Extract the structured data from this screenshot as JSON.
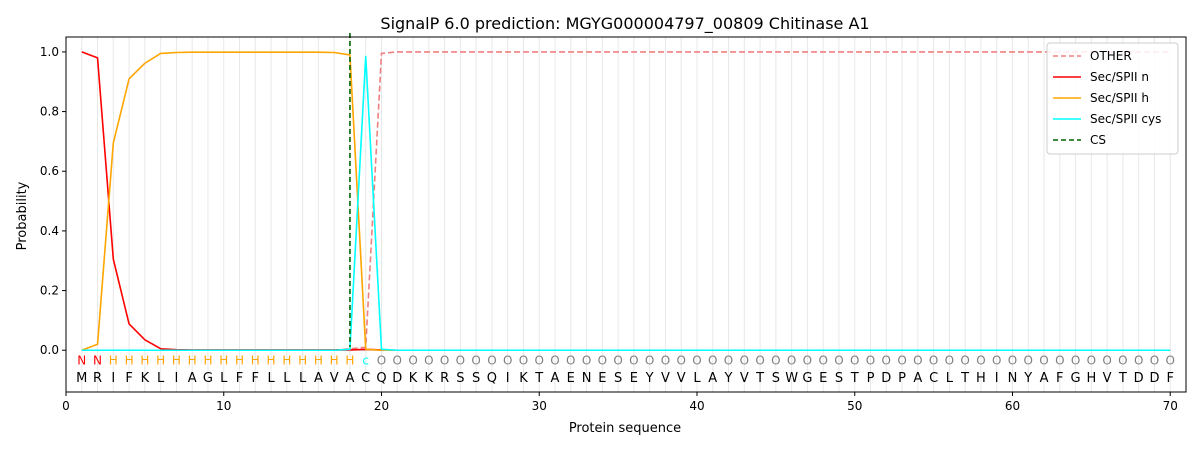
{
  "chart_data": {
    "type": "line",
    "title": "SignalP 6.0 prediction: MGYG000004797_00809 Chitinase A1",
    "xlabel": "Protein sequence",
    "ylabel": "Probability",
    "xlim": [
      0,
      71
    ],
    "ylim": [
      -0.14,
      1.05
    ],
    "xticks": [
      0,
      10,
      20,
      30,
      40,
      50,
      60,
      70
    ],
    "yticks": [
      0.0,
      0.2,
      0.4,
      0.6,
      0.8,
      1.0
    ],
    "xtick_labels": [
      "0",
      "10",
      "20",
      "30",
      "40",
      "50",
      "60",
      "70"
    ],
    "ytick_labels": [
      "0.0",
      "0.2",
      "0.4",
      "0.6",
      "0.8",
      "1.0"
    ],
    "legend_position": "top-right",
    "sequence": [
      "M",
      "R",
      "I",
      "F",
      "K",
      "L",
      "I",
      "A",
      "G",
      "L",
      "F",
      "F",
      "L",
      "L",
      "L",
      "A",
      "V",
      "A",
      "C",
      "Q",
      "D",
      "K",
      "K",
      "R",
      "S",
      "S",
      "Q",
      "I",
      "K",
      "T",
      "A",
      "E",
      "N",
      "E",
      "S",
      "E",
      "Y",
      "V",
      "V",
      "L",
      "A",
      "Y",
      "V",
      "T",
      "S",
      "W",
      "G",
      "E",
      "S",
      "T",
      "P",
      "D",
      "P",
      "A",
      "C",
      "L",
      "T",
      "H",
      "I",
      "N",
      "Y",
      "A",
      "F",
      "G",
      "H",
      "V",
      "T",
      "D",
      "D",
      "F"
    ],
    "labels": [
      "N",
      "N",
      "H",
      "H",
      "H",
      "H",
      "H",
      "H",
      "H",
      "H",
      "H",
      "H",
      "H",
      "H",
      "H",
      "H",
      "H",
      "H",
      "c",
      "O",
      "O",
      "O",
      "O",
      "O",
      "O",
      "O",
      "O",
      "O",
      "O",
      "O",
      "O",
      "O",
      "O",
      "O",
      "O",
      "O",
      "O",
      "O",
      "O",
      "O",
      "O",
      "O",
      "O",
      "O",
      "O",
      "O",
      "O",
      "O",
      "O",
      "O",
      "O",
      "O",
      "O",
      "O",
      "O",
      "O",
      "O",
      "O",
      "O",
      "O",
      "O",
      "O",
      "O",
      "O",
      "O",
      "O",
      "O",
      "O",
      "O",
      "O"
    ],
    "label_colors": {
      "N": "#ff0000",
      "H": "#ffa500",
      "c": "#00ffff",
      "O": "#808080"
    },
    "series": [
      {
        "name": "OTHER",
        "color": "#f08080",
        "dash": true,
        "values": [
          0,
          0,
          0,
          0,
          0,
          0,
          0,
          0,
          0,
          0,
          0,
          0,
          0,
          0,
          0,
          0,
          0,
          0.005,
          0.01,
          0.995,
          1,
          1,
          1,
          1,
          1,
          1,
          1,
          1,
          1,
          1,
          1,
          1,
          1,
          1,
          1,
          1,
          1,
          1,
          1,
          1,
          1,
          1,
          1,
          1,
          1,
          1,
          1,
          1,
          1,
          1,
          1,
          1,
          1,
          1,
          1,
          1,
          1,
          1,
          1,
          1,
          1,
          1,
          1,
          1,
          1,
          1,
          1,
          1,
          1,
          1
        ]
      },
      {
        "name": "Sec/SPII n",
        "color": "#ff0000",
        "dash": false,
        "values": [
          1.0,
          0.98,
          0.305,
          0.088,
          0.035,
          0.005,
          0.002,
          0.001,
          0.001,
          0.001,
          0.001,
          0.001,
          0.001,
          0.001,
          0.001,
          0.001,
          0.001,
          0.001,
          0.003,
          0.001,
          0,
          0,
          0,
          0,
          0,
          0,
          0,
          0,
          0,
          0,
          0,
          0,
          0,
          0,
          0,
          0,
          0,
          0,
          0,
          0,
          0,
          0,
          0,
          0,
          0,
          0,
          0,
          0,
          0,
          0,
          0,
          0,
          0,
          0,
          0,
          0,
          0,
          0,
          0,
          0,
          0,
          0,
          0,
          0,
          0,
          0,
          0,
          0,
          0,
          0
        ]
      },
      {
        "name": "Sec/SPII h",
        "color": "#ffa500",
        "dash": false,
        "values": [
          0,
          0.02,
          0.695,
          0.91,
          0.962,
          0.995,
          0.998,
          0.999,
          0.999,
          0.999,
          0.999,
          0.999,
          0.999,
          0.999,
          0.999,
          0.999,
          0.998,
          0.99,
          0.003,
          0,
          0,
          0,
          0,
          0,
          0,
          0,
          0,
          0,
          0,
          0,
          0,
          0,
          0,
          0,
          0,
          0,
          0,
          0,
          0,
          0,
          0,
          0,
          0,
          0,
          0,
          0,
          0,
          0,
          0,
          0,
          0,
          0,
          0,
          0,
          0,
          0,
          0,
          0,
          0,
          0,
          0,
          0,
          0,
          0,
          0,
          0,
          0,
          0,
          0,
          0
        ]
      },
      {
        "name": "Sec/SPII cys",
        "color": "#00ffff",
        "dash": false,
        "values": [
          0,
          0,
          0,
          0,
          0,
          0,
          0,
          0,
          0,
          0,
          0,
          0,
          0,
          0,
          0,
          0,
          0,
          0.003,
          0.985,
          0.003,
          0,
          0,
          0,
          0,
          0,
          0,
          0,
          0,
          0,
          0,
          0,
          0,
          0,
          0,
          0,
          0,
          0,
          0,
          0,
          0,
          0,
          0,
          0,
          0,
          0,
          0,
          0,
          0,
          0,
          0,
          0,
          0,
          0,
          0,
          0,
          0,
          0,
          0,
          0,
          0,
          0,
          0,
          0,
          0,
          0,
          0,
          0,
          0,
          0,
          0
        ]
      }
    ],
    "cs": {
      "name": "CS",
      "x": 18,
      "color": "#006400"
    }
  }
}
